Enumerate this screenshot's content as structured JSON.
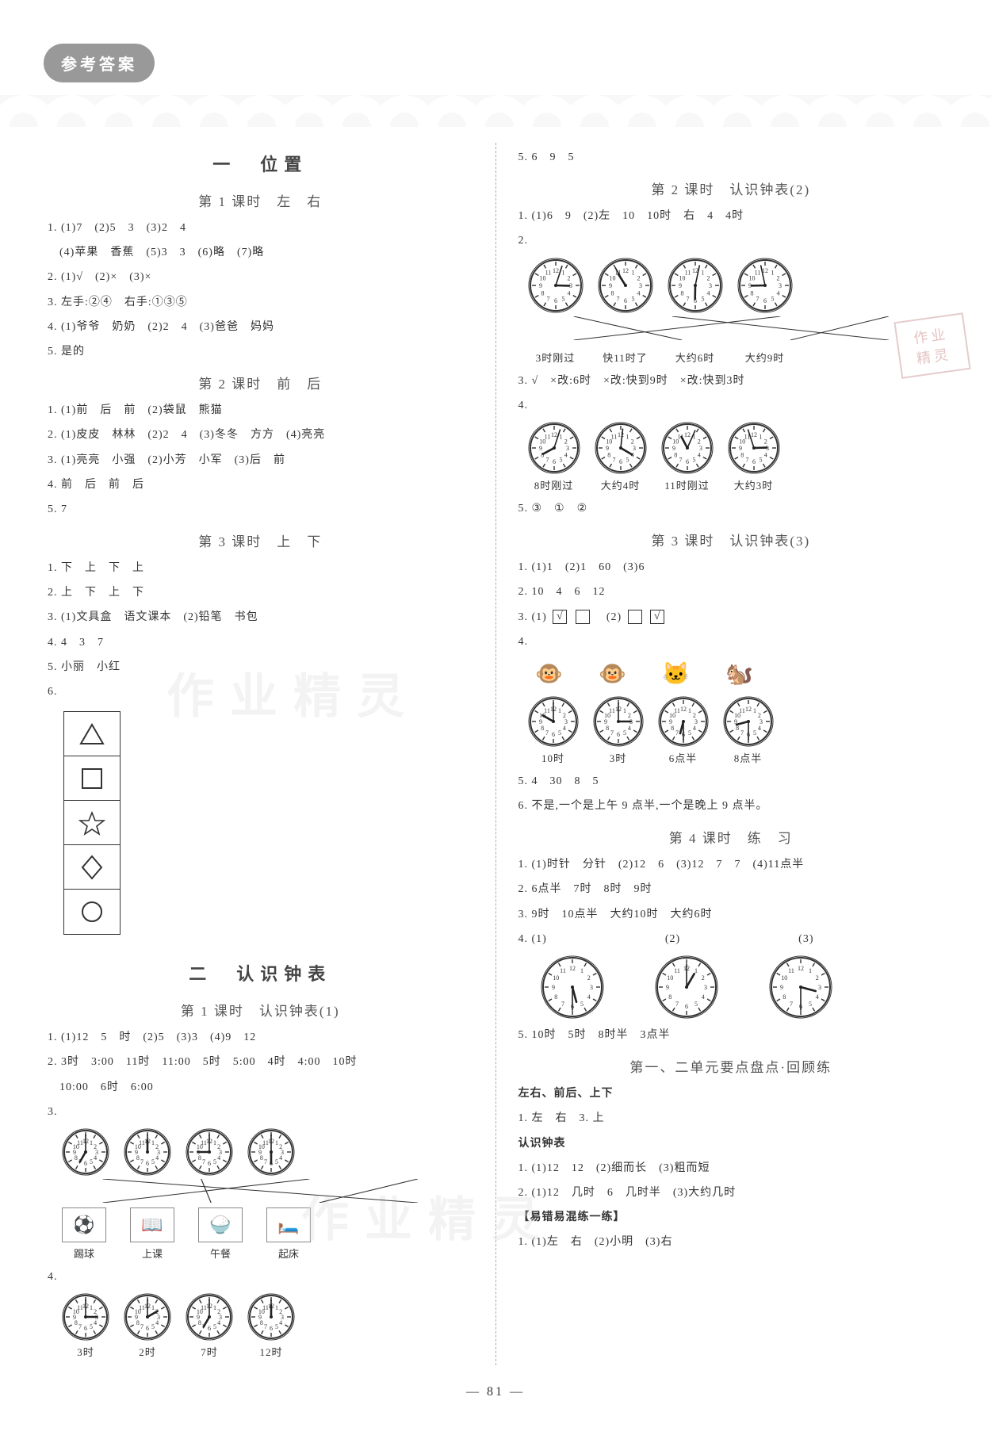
{
  "header": {
    "badge": "参考答案"
  },
  "page_number": "81",
  "watermarks": {
    "w1": "作业精灵",
    "w2": "作业精灵"
  },
  "stamp": {
    "line1": "作业",
    "line2": "精灵"
  },
  "left": {
    "chapter1": {
      "title": "一　位置"
    },
    "sec1": {
      "title": "第 1 课时　左　右",
      "l1": "1. (1)7　(2)5　3　(3)2　4",
      "l1b": "　(4)苹果　香蕉　(5)3　3　(6)略　(7)略",
      "l2": "2. (1)√　(2)×　(3)×",
      "l3": "3. 左手:②④　右手:①③⑤",
      "l4": "4. (1)爷爷　奶奶　(2)2　4　(3)爸爸　妈妈",
      "l5": "5. 是的"
    },
    "sec2": {
      "title": "第 2 课时　前　后",
      "l1": "1. (1)前　后　前　(2)袋鼠　熊猫",
      "l2": "2. (1)皮皮　林林　(2)2　4　(3)冬冬　方方　(4)亮亮",
      "l3": "3. (1)亮亮　小强　(2)小芳　小军　(3)后　前",
      "l4": "4. 前　后　前　后",
      "l5": "5. 7"
    },
    "sec3": {
      "title": "第 3 课时　上　下",
      "l1": "1. 下　上　下　上",
      "l2": "2. 上　下　上　下",
      "l3": "3. (1)文具盒　语文课本　(2)铅笔　书包",
      "l4": "4. 4　3　7",
      "l5": "5. 小丽　小红",
      "l6": "6."
    },
    "chapter2": {
      "title": "二　认识钟表"
    },
    "sec4": {
      "title": "第 1 课时　认识钟表(1)",
      "l1": "1. (1)12　5　时　(2)5　(3)3　(4)9　12",
      "l2": "2. 3时　3:00　11时　11:00　5时　5:00　4时　4:00　10时",
      "l2b": "　10:00　6时　6:00",
      "l3": "3.",
      "clocks3": [
        {
          "h": 7,
          "m": 0
        },
        {
          "h": 12,
          "m": 0
        },
        {
          "h": 9,
          "m": 0
        },
        {
          "h": 6,
          "m": 0
        }
      ],
      "activities": [
        "踢球",
        "上课",
        "午餐",
        "起床"
      ],
      "l4": "4.",
      "clocks4": [
        {
          "h": 3,
          "m": 0,
          "label": "3时"
        },
        {
          "h": 2,
          "m": 0,
          "label": "2时"
        },
        {
          "h": 7,
          "m": 0,
          "label": "7时"
        },
        {
          "h": 12,
          "m": 0,
          "label": "12时"
        }
      ]
    }
  },
  "right": {
    "top": "5. 6　9　5",
    "sec5": {
      "title": "第 2 课时　认识钟表(2)",
      "l1": "1. (1)6　9　(2)左　10　10时　右　4　4时",
      "l2": "2.",
      "clocks2": [
        {
          "h": 3,
          "m": 3,
          "label": "3时刚过"
        },
        {
          "h": 10,
          "m": 55,
          "label": "快11时了"
        },
        {
          "h": 6,
          "m": 2,
          "label": "大约6时"
        },
        {
          "h": 8,
          "m": 58,
          "label": "大约9时"
        }
      ],
      "l3": "3. √　×改:6时　×改:快到9时　×改:快到3时",
      "l4": "4.",
      "clocks4": [
        {
          "h": 8,
          "m": 3,
          "label": "8时刚过"
        },
        {
          "h": 4,
          "m": 1,
          "label": "大约4时"
        },
        {
          "h": 11,
          "m": 4,
          "label": "11时刚过"
        },
        {
          "h": 2,
          "m": 57,
          "label": "大约3时"
        }
      ],
      "l5": "5. ③　①　②"
    },
    "sec6": {
      "title": "第 3 课时　认识钟表(3)",
      "l1": "1. (1)1　(2)1　60　(3)6",
      "l2": "2. 10　4　6　12",
      "l3a": "3. (1)",
      "l3b": "(2)",
      "l4": "4.",
      "animals": [
        "🐵",
        "🐵",
        "🐱",
        "🐿️"
      ],
      "clocks4": [
        {
          "h": 10,
          "m": 0,
          "label": "10时"
        },
        {
          "h": 3,
          "m": 0,
          "label": "3时"
        },
        {
          "h": 6,
          "m": 30,
          "label": "6点半"
        },
        {
          "h": 8,
          "m": 30,
          "label": "8点半"
        }
      ],
      "l5": "5. 4　30　8　5",
      "l6": "6. 不是,一个是上午 9 点半,一个是晚上 9 点半。"
    },
    "sec7": {
      "title": "第 4 课时　练　习",
      "l1": "1. (1)时针　分针　(2)12　6　(3)12　7　7　(4)11点半",
      "l2": "2. 6点半　7时　8时　9时",
      "l3": "3. 9时　10点半　大约10时　大约6时",
      "l4a": "4. (1)",
      "l4b": "(2)",
      "l4c": "(3)",
      "clocks4": [
        {
          "h": 5,
          "m": 30
        },
        {
          "h": 1,
          "m": 0
        },
        {
          "h": 3,
          "m": 30
        }
      ],
      "l5": "5. 10时　5时　8时半　3点半"
    },
    "sec8": {
      "title": "第一、二单元要点盘点·回顾练",
      "h1": "左右、前后、上下",
      "l1": "1. 左　右　3. 上",
      "h2": "认识钟表",
      "l2": "1. (1)12　12　(2)细而长　(3)粗而短",
      "l3": "2. (1)12　几时　6　几时半　(3)大约几时",
      "h3": "【易错易混练一练】",
      "l4": "1. (1)左　右　(2)小明　(3)右"
    }
  },
  "clock_style": {
    "size": 66,
    "face_fill": "#ffffff",
    "face_stroke": "#333",
    "stroke_width": 2,
    "hour_hand_len": 16,
    "min_hand_len": 24,
    "hand_color": "#222",
    "tick_color": "#333"
  }
}
